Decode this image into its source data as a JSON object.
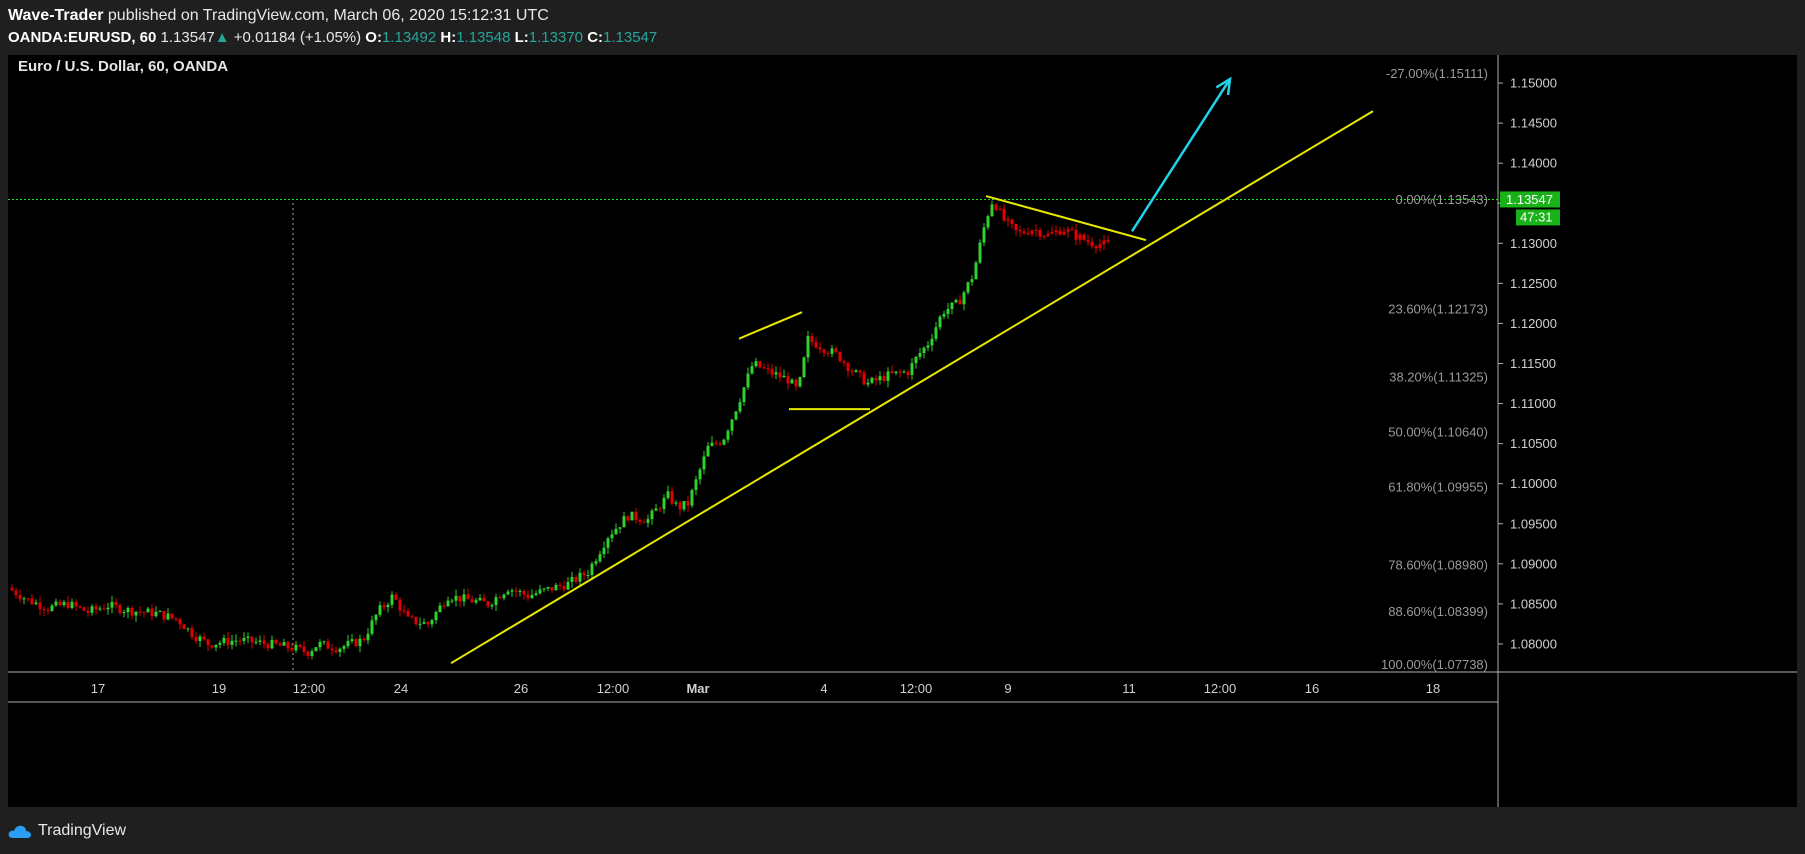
{
  "header": {
    "author": "Wave-Trader",
    "published_text": "published on TradingView.com, March 06, 2020 15:12:31 UTC",
    "symbol": "OANDA:EURUSD, 60",
    "last": "1.13547",
    "change": "+0.01184 (+1.05%)",
    "o_label": "O:",
    "o_value": "1.13492",
    "h_label": "H:",
    "h_value": "1.13548",
    "l_label": "L:",
    "l_value": "1.13370",
    "c_label": "C:",
    "c_value": "1.13547"
  },
  "chart_data": {
    "type": "candlestick",
    "title": "Euro / U.S. Dollar, 60, OANDA",
    "ylim": [
      1.0765,
      1.1535
    ],
    "y_ticks": [
      "1.15000",
      "1.14500",
      "1.14000",
      "1.13500",
      "1.13000",
      "1.12500",
      "1.12000",
      "1.11500",
      "1.11000",
      "1.10500",
      "1.10000",
      "1.09500",
      "1.09000",
      "1.08500",
      "1.08000"
    ],
    "x_ticks": [
      "17",
      "19",
      "12:00",
      "24",
      "26",
      "12:00",
      "Mar",
      "4",
      "12:00",
      "9",
      "11",
      "12:00",
      "16",
      "18"
    ],
    "price_label": "1.13547",
    "countdown_label": "47:31",
    "fib_levels": [
      {
        "label": "-27.00%(1.15111)",
        "price": 1.15111
      },
      {
        "label": "0.00%(1.13543)",
        "price": 1.13543
      },
      {
        "label": "23.60%(1.12173)",
        "price": 1.12173
      },
      {
        "label": "38.20%(1.11325)",
        "price": 1.11325
      },
      {
        "label": "50.00%(1.10640)",
        "price": 1.1064
      },
      {
        "label": "61.80%(1.09955)",
        "price": 1.09955
      },
      {
        "label": "78.60%(1.08980)",
        "price": 1.0898
      },
      {
        "label": "88.60%(1.08399)",
        "price": 1.08399
      },
      {
        "label": "100.00%(1.07738)",
        "price": 1.07738
      }
    ],
    "price_path": [
      [
        0,
        1.087
      ],
      [
        20,
        1.0855
      ],
      [
        40,
        1.0845
      ],
      [
        60,
        1.085
      ],
      [
        80,
        1.084
      ],
      [
        100,
        1.0848
      ],
      [
        120,
        1.0842
      ],
      [
        150,
        1.0838
      ],
      [
        170,
        1.083
      ],
      [
        185,
        1.0812
      ],
      [
        200,
        1.08
      ],
      [
        230,
        1.0805
      ],
      [
        260,
        1.08
      ],
      [
        285,
        1.0795
      ],
      [
        300,
        1.079
      ],
      [
        310,
        1.08
      ],
      [
        330,
        1.0795
      ],
      [
        355,
        1.0805
      ],
      [
        370,
        1.084
      ],
      [
        385,
        1.086
      ],
      [
        400,
        1.083
      ],
      [
        420,
        1.0825
      ],
      [
        440,
        1.086
      ],
      [
        460,
        1.0855
      ],
      [
        480,
        1.085
      ],
      [
        500,
        1.087
      ],
      [
        520,
        1.086
      ],
      [
        545,
        1.087
      ],
      [
        560,
        1.0875
      ],
      [
        580,
        1.089
      ],
      [
        600,
        1.0935
      ],
      [
        620,
        1.096
      ],
      [
        640,
        1.0955
      ],
      [
        660,
        1.0985
      ],
      [
        670,
        1.097
      ],
      [
        680,
        1.0975
      ],
      [
        700,
        1.1045
      ],
      [
        715,
        1.1055
      ],
      [
        730,
        1.11
      ],
      [
        745,
        1.115
      ],
      [
        760,
        1.114
      ],
      [
        780,
        1.113
      ],
      [
        790,
        1.1115
      ],
      [
        800,
        1.118
      ],
      [
        815,
        1.117
      ],
      [
        830,
        1.116
      ],
      [
        845,
        1.114
      ],
      [
        860,
        1.1125
      ],
      [
        880,
        1.1135
      ],
      [
        900,
        1.114
      ],
      [
        910,
        1.116
      ],
      [
        920,
        1.1175
      ],
      [
        935,
        1.1215
      ],
      [
        950,
        1.1225
      ],
      [
        965,
        1.126
      ],
      [
        978,
        1.133
      ],
      [
        985,
        1.1355
      ],
      [
        995,
        1.133
      ],
      [
        1010,
        1.1312
      ],
      [
        1025,
        1.1318
      ],
      [
        1040,
        1.131
      ],
      [
        1055,
        1.1318
      ],
      [
        1070,
        1.1308
      ],
      [
        1085,
        1.13
      ],
      [
        1100,
        1.1298
      ]
    ],
    "trend_lines": [
      {
        "color": "#e8e800",
        "from": [
          "24-late",
          1.0776
        ],
        "to": [
          "17-Mar",
          1.1465
        ]
      },
      {
        "color": "#e8e800",
        "from": [
          "1-Mar",
          1.1181
        ],
        "to": [
          "2-Mar",
          1.1214
        ]
      },
      {
        "color": "#e8e800",
        "from": [
          "3-Mar",
          1.1093
        ],
        "to": [
          "5-Mar",
          1.1093
        ]
      },
      {
        "color": "#e8e800",
        "from": [
          "6-Mar",
          1.1359
        ],
        "to": [
          "11-Mar",
          1.1304
        ]
      }
    ],
    "arrow": {
      "color": "#22d3e8",
      "from": [
        "11-Mar",
        1.1315
      ],
      "to": [
        "13-Mar",
        1.1505
      ]
    }
  },
  "footer": {
    "brand": "TradingView"
  }
}
